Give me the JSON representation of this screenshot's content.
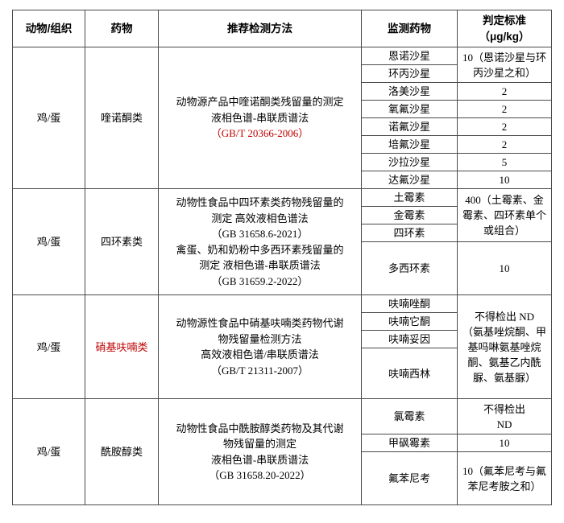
{
  "colors": {
    "accent_red": "#c00000",
    "border": "#4a4a4a",
    "text": "#000000",
    "background": "#ffffff"
  },
  "table": {
    "headers": {
      "animal": "动物/组织",
      "drug": "药物",
      "method": "推荐检测方法",
      "monitored": "监测药物",
      "standard_line1": "判定标准",
      "standard_line2": "（μg/kg）"
    },
    "sections": [
      {
        "animal": "鸡/蛋",
        "drug_class": "喹诺酮类",
        "method_lines": [
          "动物源产品中喹诺酮类残留量的测定",
          "液相色谱-串联质谱法",
          "（GB/T 20366-2006）"
        ],
        "merged_standard": "10（恩诺沙星与环丙沙星之和）",
        "rows": [
          {
            "drug": "恩诺沙星"
          },
          {
            "drug": "环丙沙星"
          },
          {
            "drug": "洛美沙星",
            "standard": "2"
          },
          {
            "drug": "氧氟沙星",
            "standard": "2"
          },
          {
            "drug": "诺氟沙星",
            "standard": "2"
          },
          {
            "drug": "培氟沙星",
            "standard": "2"
          },
          {
            "drug": "沙拉沙星",
            "standard": "5"
          },
          {
            "drug": "达氟沙星",
            "standard": "10"
          }
        ]
      },
      {
        "animal": "鸡/蛋",
        "drug_class": "四环素类",
        "method_lines": [
          "动物性食品中四环素类药物残留量的",
          "测定  高效液相色谱法",
          "（GB 31658.6-2021）",
          "禽蛋、奶和奶粉中多西环素残留量的",
          "测定  液相色谱-串联质谱法",
          "（GB 31659.2-2022）"
        ],
        "merged_standard": "400（土霉素、金霉素、四环素单个或组合）",
        "rows": [
          {
            "drug": "土霉素"
          },
          {
            "drug": "金霉素"
          },
          {
            "drug": "四环素"
          },
          {
            "drug": "多西环素",
            "standard": "10"
          }
        ]
      },
      {
        "animal": "鸡/蛋",
        "drug_class": "硝基呋喃类",
        "method_lines": [
          "动物源性食品中硝基呋喃类药物代谢",
          "物残留量检测方法",
          "高效液相色谱/串联质谱法",
          "（GB/T 21311-2007）"
        ],
        "merged_standard_lines": [
          "不得检出  ND",
          "（氨基唑烷酮、甲基吗啉氨基唑烷酮、氨基乙内酰脲、氨基脲）"
        ],
        "rows": [
          {
            "drug": "呋喃唑酮"
          },
          {
            "drug": "呋喃它酮"
          },
          {
            "drug": "呋喃妥因"
          },
          {
            "drug": "呋喃西林"
          }
        ]
      },
      {
        "animal": "鸡/蛋",
        "drug_class": "酰胺醇类",
        "method_lines": [
          "动物性食品中酰胺醇类药物及其代谢",
          "物残留量的测定",
          "液相色谱-串联质谱法",
          "（GB 31658.20-2022）"
        ],
        "rows": [
          {
            "drug": "氯霉素",
            "standard_line1": "不得检出",
            "standard_line2": "ND"
          },
          {
            "drug": "甲砜霉素",
            "standard": "10"
          },
          {
            "drug": "氟苯尼考",
            "standard": "10（氟苯尼考与氟苯尼考胺之和）"
          }
        ]
      }
    ]
  }
}
